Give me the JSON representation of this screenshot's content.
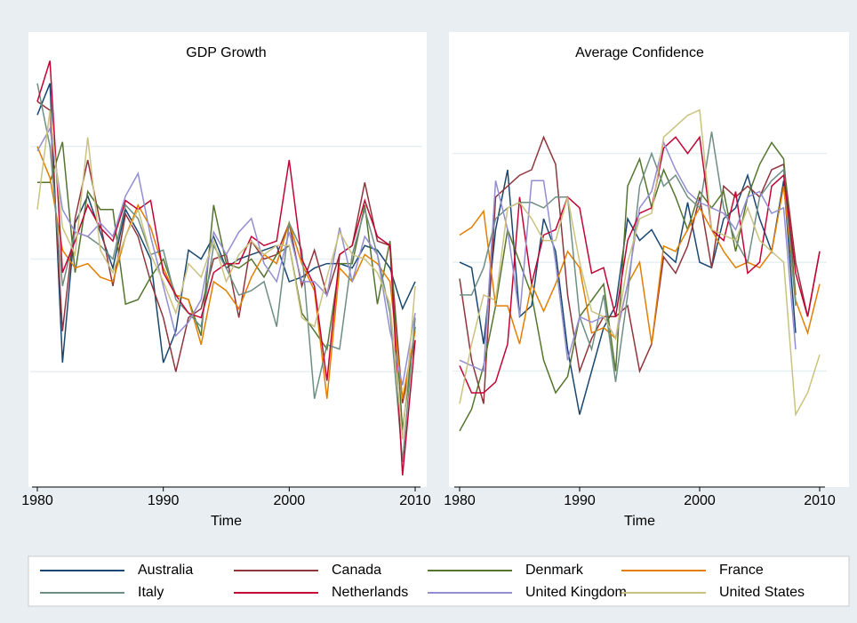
{
  "chart_data": [
    {
      "type": "line",
      "title": "GDP Growth",
      "xlabel": "Time",
      "x": [
        1980,
        1981,
        1982,
        1983,
        1984,
        1985,
        1986,
        1987,
        1988,
        1989,
        1990,
        1991,
        1992,
        1993,
        1994,
        1995,
        1996,
        1997,
        1998,
        1999,
        2000,
        2001,
        2002,
        2003,
        2004,
        2005,
        2006,
        2007,
        2008,
        2009,
        2010
      ],
      "xlim": [
        1980,
        2010
      ],
      "xticks": [
        1980,
        1990,
        2000,
        2010
      ],
      "ylim": [
        -2.5,
        7.5
      ],
      "yticks": [
        0,
        2.5,
        5
      ],
      "grid": true,
      "series": [
        {
          "values": [
            5.7,
            6.4,
            0.2,
            3.3,
            3.9,
            3.1,
            2.3,
            3.6,
            3.1,
            2.5,
            0.2,
            0.9,
            2.7,
            2.5,
            3.0,
            2.3,
            2.5,
            2.6,
            2.7,
            2.8,
            2.0,
            2.1,
            2.3,
            2.4,
            2.4,
            2.3,
            2.8,
            2.7,
            2.3,
            1.4,
            2.0
          ]
        },
        {
          "values": [
            6.0,
            5.8,
            0.9,
            3.4,
            4.7,
            3.3,
            1.9,
            3.5,
            3.0,
            2.0,
            1.2,
            0.0,
            1.2,
            1.4,
            2.5,
            2.6,
            1.2,
            2.9,
            2.5,
            2.6,
            3.3,
            1.9,
            2.7,
            1.7,
            2.6,
            2.8,
            4.2,
            2.9,
            2.8,
            -0.7,
            0.7
          ]
        },
        {
          "values": [
            4.2,
            4.2,
            5.1,
            2.2,
            4.0,
            3.6,
            3.6,
            1.5,
            1.6,
            2.1,
            2.5,
            1.7,
            1.6,
            0.8,
            3.7,
            2.4,
            2.3,
            2.5,
            2.1,
            2.6,
            2.8,
            1.3,
            0.9,
            0.5,
            2.4,
            2.4,
            3.7,
            1.5,
            2.9,
            -1.3,
            1.0
          ]
        },
        {
          "values": [
            5.0,
            4.3,
            2.7,
            2.3,
            2.4,
            2.1,
            2.0,
            3.0,
            3.7,
            3.2,
            2.3,
            1.7,
            1.6,
            0.6,
            2.0,
            1.8,
            1.4,
            2.1,
            2.6,
            2.4,
            3.3,
            2.4,
            1.8,
            -0.6,
            2.3,
            2.0,
            2.6,
            2.4,
            2.0,
            -0.6,
            0.9
          ]
        },
        {
          "values": [
            6.4,
            5.0,
            1.9,
            3.1,
            3.0,
            2.8,
            2.5,
            3.7,
            3.4,
            2.6,
            2.7,
            1.6,
            1.3,
            1.0,
            2.8,
            2.3,
            1.7,
            1.8,
            2.0,
            1.0,
            3.3,
            2.7,
            -0.6,
            0.6,
            0.5,
            2.6,
            3.6,
            2.6,
            1.3,
            -2.0,
            1.2
          ]
        },
        {
          "values": [
            6.0,
            6.9,
            2.2,
            2.9,
            3.7,
            3.2,
            2.9,
            3.8,
            3.6,
            3.8,
            2.2,
            1.7,
            1.3,
            1.2,
            2.2,
            2.4,
            2.4,
            3.0,
            2.8,
            2.9,
            4.7,
            2.5,
            1.9,
            -0.2,
            2.6,
            2.8,
            3.8,
            3.0,
            2.8,
            -2.3,
            0.7
          ]
        },
        {
          "values": [
            4.9,
            5.4,
            3.6,
            3.1,
            3.0,
            3.3,
            3.0,
            3.9,
            4.4,
            3.0,
            1.9,
            0.8,
            1.1,
            1.6,
            3.1,
            2.6,
            3.1,
            3.4,
            2.4,
            2.0,
            3.1,
            2.0,
            2.0,
            1.7,
            3.2,
            2.0,
            3.0,
            2.6,
            0.9,
            -0.3,
            1.3
          ]
        },
        {
          "values": [
            3.6,
            5.8,
            3.2,
            2.6,
            5.2,
            2.7,
            2.2,
            3.0,
            3.6,
            2.6,
            2.0,
            1.3,
            2.4,
            2.1,
            2.9,
            2.0,
            2.6,
            2.9,
            2.6,
            2.8,
            2.8,
            1.2,
            1.0,
            2.1,
            3.1,
            2.6,
            2.5,
            2.2,
            1.5,
            -1.5,
            1.9
          ]
        }
      ]
    },
    {
      "type": "line",
      "title": "Average Confidence",
      "xlabel": "Time",
      "x": [
        1980,
        1981,
        1982,
        1983,
        1984,
        1985,
        1986,
        1987,
        1988,
        1989,
        1990,
        1991,
        1992,
        1993,
        1994,
        1995,
        1996,
        1997,
        1998,
        1999,
        2000,
        2001,
        2002,
        2003,
        2004,
        2005,
        2006,
        2007,
        2008,
        2009,
        2010
      ],
      "xlim": [
        1980,
        2010
      ],
      "xticks": [
        1980,
        1990,
        2000,
        2010
      ],
      "ylim": [
        -2,
        2.1
      ],
      "yticks": [
        -1,
        0,
        1
      ],
      "grid": true,
      "series": [
        {
          "values": [
            0.0,
            -0.05,
            -0.75,
            0.3,
            0.85,
            -0.5,
            -0.4,
            0.4,
            0.1,
            -0.8,
            -1.4,
            -1.0,
            -0.6,
            -0.4,
            0.4,
            0.2,
            0.3,
            0.1,
            0.0,
            0.55,
            0.0,
            -0.05,
            0.4,
            0.5,
            0.8,
            0.4,
            0.1,
            0.75,
            -0.65,
            null,
            null
          ]
        },
        {
          "values": [
            -0.15,
            -0.9,
            -1.3,
            0.6,
            0.7,
            0.8,
            0.85,
            1.15,
            0.9,
            -0.3,
            -1.0,
            -0.7,
            -0.5,
            -0.5,
            -0.4,
            -1.0,
            -0.75,
            0.05,
            -0.1,
            0.15,
            0.6,
            -0.05,
            0.7,
            0.6,
            0.7,
            0.6,
            0.85,
            0.9,
            0.0,
            -0.5,
            0.1
          ]
        },
        {
          "values": [
            -1.55,
            -1.35,
            -0.95,
            -0.4,
            0.3,
            0.0,
            -0.3,
            -0.9,
            -1.2,
            -1.05,
            -0.5,
            -0.35,
            -0.2,
            -1.0,
            0.7,
            0.95,
            0.5,
            0.85,
            0.6,
            0.3,
            0.65,
            0.5,
            0.65,
            0.1,
            0.6,
            0.9,
            1.1,
            0.95,
            -0.3,
            null,
            null
          ]
        },
        {
          "values": [
            0.25,
            0.32,
            0.47,
            -0.4,
            -0.4,
            -0.75,
            -0.2,
            -0.45,
            -0.2,
            0.1,
            -0.05,
            -0.65,
            -0.6,
            -0.7,
            -0.2,
            0.0,
            -0.75,
            0.15,
            0.1,
            0.3,
            0.5,
            0.3,
            0.1,
            -0.05,
            0.0,
            -0.05,
            0.1,
            0.7,
            -0.35,
            -0.65,
            -0.2
          ]
        },
        {
          "values": [
            -0.3,
            -0.3,
            -0.05,
            0.4,
            0.5,
            0.55,
            0.55,
            0.5,
            0.6,
            0.6,
            -0.5,
            -0.8,
            -0.3,
            -1.1,
            -0.3,
            0.7,
            1.0,
            0.7,
            0.8,
            0.6,
            0.5,
            1.2,
            0.5,
            0.2,
            0.0,
            0.6,
            0.75,
            0.85,
            -0.4,
            null,
            null
          ]
        },
        {
          "values": [
            -0.95,
            -1.2,
            -1.2,
            -1.1,
            -0.75,
            0.6,
            -0.2,
            0.25,
            0.3,
            0.6,
            0.5,
            -0.1,
            -0.05,
            -0.5,
            0.2,
            0.45,
            0.5,
            1.05,
            1.15,
            1.0,
            1.15,
            0.3,
            0.2,
            0.65,
            -0.1,
            0.0,
            0.7,
            0.8,
            -0.1,
            -0.5,
            0.1
          ]
        },
        {
          "values": [
            -0.9,
            -0.95,
            -1.0,
            0.75,
            0.3,
            -0.5,
            0.75,
            0.75,
            0.0,
            -0.9,
            -0.5,
            -0.55,
            -0.5,
            -0.7,
            -0.2,
            0.5,
            0.65,
            1.1,
            0.85,
            0.65,
            0.55,
            0.5,
            0.45,
            0.3,
            0.6,
            0.65,
            0.45,
            0.5,
            -0.8,
            null,
            null
          ]
        },
        {
          "values": [
            -1.3,
            -0.75,
            -0.3,
            -0.35,
            0.5,
            0.55,
            0.4,
            0.2,
            0.2,
            0.6,
            0.0,
            -0.45,
            -0.5,
            -0.7,
            0.0,
            0.4,
            0.45,
            1.15,
            1.25,
            1.35,
            1.4,
            0.3,
            0.25,
            0.2,
            0.5,
            0.2,
            0.1,
            0.0,
            -1.4,
            -1.2,
            -0.85
          ]
        }
      ]
    }
  ],
  "legend": [
    {
      "name": "Australia",
      "color": "#1a476f"
    },
    {
      "name": "Canada",
      "color": "#90353b"
    },
    {
      "name": "Denmark",
      "color": "#55752f"
    },
    {
      "name": "France",
      "color": "#e37e00"
    },
    {
      "name": "Italy",
      "color": "#6e8e84"
    },
    {
      "name": "Netherlands",
      "color": "#c10534"
    },
    {
      "name": "United Kingdom",
      "color": "#938dd2"
    },
    {
      "name": "United States",
      "color": "#cac27e"
    }
  ]
}
